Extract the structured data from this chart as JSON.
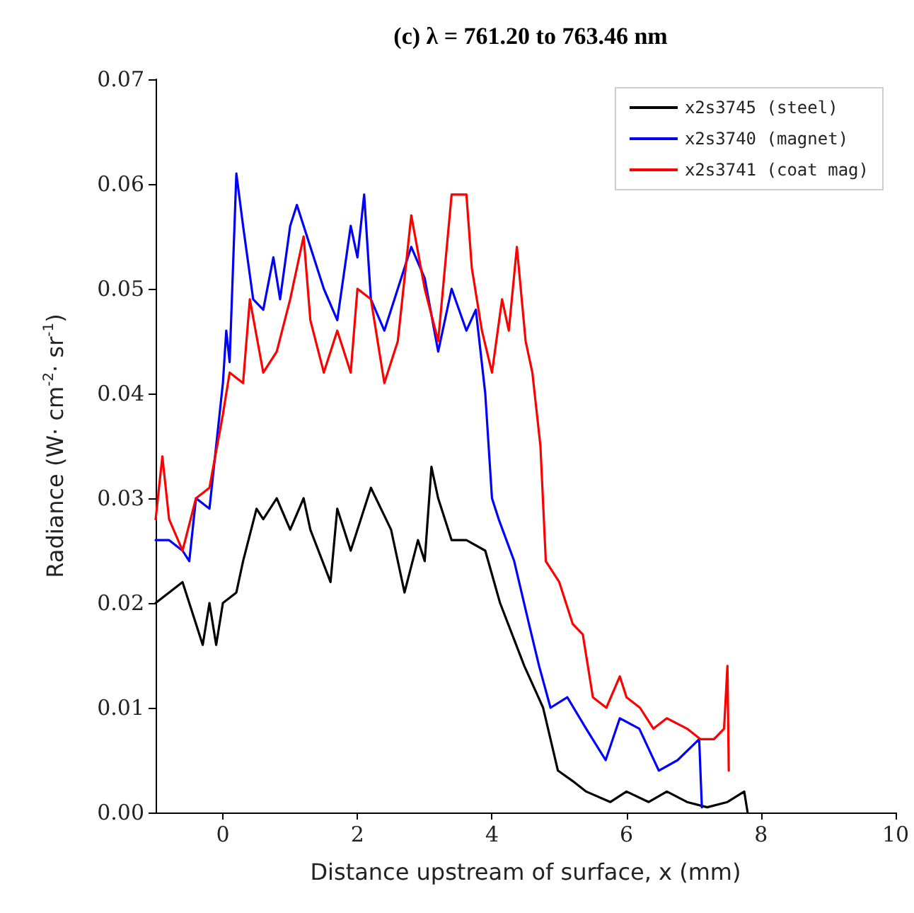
{
  "chart_data": {
    "type": "line",
    "title": "(c) λ = 761.20 to 763.46 nm",
    "xlabel": "Distance upstream of surface, x (mm)",
    "ylabel": "Radiance (W· cm$^{-2}$· sr$^{-1}$)",
    "xlim": [
      -1,
      10
    ],
    "xticks": [
      0,
      2,
      4,
      6,
      8,
      10
    ],
    "ylim": [
      0,
      0.07
    ],
    "yticks": [
      {
        "value": 0,
        "label": "0.00"
      },
      {
        "value": 0.01,
        "label": "0.01"
      },
      {
        "value": 0.02,
        "label": "0.02"
      },
      {
        "value": 0.03,
        "label": "0.03"
      },
      {
        "value": 0.04,
        "label": "0.04"
      },
      {
        "value": 0.05,
        "label": "0.05"
      },
      {
        "value": 0.06,
        "label": "0.06"
      },
      {
        "value": 0.07,
        "label": "0.07"
      }
    ],
    "grid": false,
    "legend": "top right",
    "marker": "none",
    "line_style": "solid",
    "series": [
      {
        "name": "x2s3745 (steel)",
        "color": "#000000",
        "x": [
          -1,
          -0.8,
          -0.6,
          -0.4,
          -0.3,
          -0.2,
          -0.1,
          0,
          0.2,
          0.3,
          0.5,
          0.6,
          0.8,
          1.0,
          1.2,
          1.3,
          1.6,
          1.7,
          1.9,
          2.2,
          2.5,
          2.7,
          2.9,
          3.0,
          3.1,
          3.2,
          3.4,
          3.62,
          3.9,
          4.12,
          4.3,
          4.48,
          4.76,
          4.98,
          5.2,
          5.4,
          5.76,
          6.0,
          6.33,
          6.6,
          6.9,
          7.2,
          7.5,
          7.75,
          7.8
        ],
        "values": [
          0.02,
          0.021,
          0.022,
          0.018,
          0.016,
          0.02,
          0.016,
          0.02,
          0.021,
          0.024,
          0.029,
          0.028,
          0.03,
          0.027,
          0.03,
          0.027,
          0.022,
          0.029,
          0.025,
          0.031,
          0.027,
          0.021,
          0.026,
          0.024,
          0.033,
          0.03,
          0.026,
          0.026,
          0.025,
          0.02,
          0.017,
          0.014,
          0.01,
          0.004,
          0.003,
          0.002,
          0.001,
          0.002,
          0.001,
          0.002,
          0.001,
          0.0005,
          0.001,
          0.002,
          0
        ]
      },
      {
        "name": "x2s3740 (magnet)",
        "color": "#0000ff",
        "x": [
          -1,
          -0.8,
          -0.6,
          -0.5,
          -0.4,
          -0.2,
          -0.1,
          0,
          0.05,
          0.1,
          0.2,
          0.3,
          0.45,
          0.6,
          0.75,
          0.85,
          1.0,
          1.1,
          1.3,
          1.5,
          1.7,
          1.9,
          2.0,
          2.1,
          2.2,
          2.4,
          2.6,
          2.8,
          3.0,
          3.2,
          3.4,
          3.62,
          3.76,
          3.9,
          4.0,
          4.1,
          4.33,
          4.55,
          4.7,
          4.87,
          5.12,
          5.4,
          5.69,
          5.9,
          6.19,
          6.48,
          6.76,
          7.08,
          7.12
        ],
        "values": [
          0.026,
          0.026,
          0.025,
          0.024,
          0.03,
          0.029,
          0.035,
          0.041,
          0.046,
          0.043,
          0.061,
          0.056,
          0.049,
          0.048,
          0.053,
          0.049,
          0.056,
          0.058,
          0.054,
          0.05,
          0.047,
          0.056,
          0.053,
          0.059,
          0.049,
          0.046,
          0.05,
          0.054,
          0.051,
          0.044,
          0.05,
          0.046,
          0.048,
          0.04,
          0.03,
          0.028,
          0.024,
          0.018,
          0.014,
          0.01,
          0.011,
          0.008,
          0.005,
          0.009,
          0.008,
          0.004,
          0.005,
          0.007,
          0.0005
        ]
      },
      {
        "name": "x2s3741 (coat mag)",
        "color": "#ff0000",
        "x": [
          -1,
          -0.9,
          -0.8,
          -0.6,
          -0.4,
          -0.2,
          0,
          0.1,
          0.3,
          0.4,
          0.6,
          0.8,
          1.0,
          1.2,
          1.3,
          1.5,
          1.7,
          1.9,
          2.0,
          2.2,
          2.4,
          2.6,
          2.8,
          3.0,
          3.2,
          3.4,
          3.62,
          3.7,
          3.85,
          4.0,
          4.15,
          4.25,
          4.37,
          4.5,
          4.6,
          4.72,
          4.8,
          5.0,
          5.2,
          5.35,
          5.5,
          5.7,
          5.9,
          6.0,
          6.2,
          6.4,
          6.6,
          6.9,
          7.1,
          7.3,
          7.45,
          7.5,
          7.52
        ],
        "values": [
          0.028,
          0.034,
          0.028,
          0.025,
          0.03,
          0.031,
          0.038,
          0.042,
          0.041,
          0.049,
          0.042,
          0.044,
          0.049,
          0.055,
          0.047,
          0.042,
          0.046,
          0.042,
          0.05,
          0.049,
          0.041,
          0.045,
          0.057,
          0.05,
          0.045,
          0.059,
          0.059,
          0.052,
          0.046,
          0.042,
          0.049,
          0.046,
          0.054,
          0.045,
          0.042,
          0.035,
          0.024,
          0.022,
          0.018,
          0.017,
          0.011,
          0.01,
          0.013,
          0.011,
          0.01,
          0.008,
          0.009,
          0.008,
          0.007,
          0.007,
          0.008,
          0.014,
          0.004
        ]
      }
    ]
  }
}
